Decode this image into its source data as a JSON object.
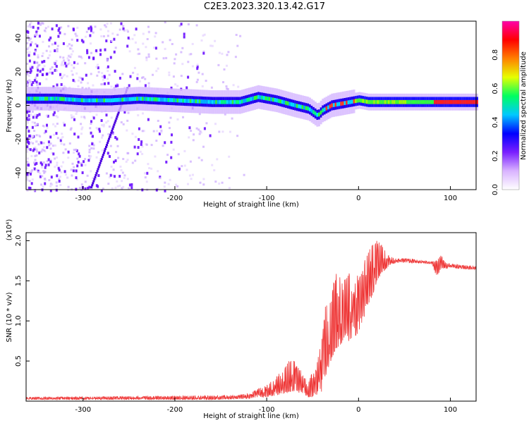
{
  "title": "C2E3.2023.320.13.42.G17",
  "chart_data": [
    {
      "type": "heatmap",
      "xlabel": "Height of straight line (km)",
      "ylabel": "Frequency (Hz)",
      "xlim": [
        -362,
        128
      ],
      "ylim": [
        -50,
        50
      ],
      "xticks": [
        -300,
        -200,
        -100,
        0,
        100
      ],
      "yticks": [
        -40,
        -20,
        0,
        20,
        40
      ],
      "colorbar": {
        "label": "Normalized spectral amplitude",
        "range": [
          0.0,
          1.0
        ],
        "ticks": [
          "0.0",
          "0.2",
          "0.4",
          "0.6",
          "0.8"
        ],
        "colormap": [
          "#ffffff",
          "#d9b3ff",
          "#7a1fff",
          "#0000ff",
          "#00c8ff",
          "#00ff60",
          "#e6ff00",
          "#ff8000",
          "#ff0000",
          "#ff00aa"
        ]
      },
      "ridge": {
        "x": [
          -362,
          -330,
          -300,
          -270,
          -240,
          -200,
          -160,
          -130,
          -110,
          -90,
          -70,
          -55,
          -45,
          -40,
          -30,
          -20,
          -10,
          0,
          10,
          30,
          60,
          90,
          128
        ],
        "y": [
          4,
          4,
          3,
          3,
          4,
          3,
          2,
          2,
          5,
          3,
          0,
          -2,
          -6,
          -3,
          0,
          1,
          2,
          3,
          2,
          2,
          2,
          2,
          2
        ]
      },
      "grid": false
    },
    {
      "type": "line",
      "xlabel": "Height of straight line (km)",
      "ylabel": "SNR (10 * v/v)",
      "multiplier": "(x10⁴)",
      "xlim": [
        -362,
        128
      ],
      "ylim": [
        0,
        2.1
      ],
      "xticks": [
        -300,
        -200,
        -100,
        0,
        100
      ],
      "yticks": [
        0.5,
        1.0,
        1.5,
        2.0
      ],
      "ytick_labels": [
        "0.5",
        "1.0",
        "1.5",
        "2.0"
      ],
      "color": "#ee3333",
      "envelope": {
        "x": [
          -362,
          -250,
          -150,
          -130,
          -120,
          -110,
          -100,
          -90,
          -80,
          -75,
          -70,
          -65,
          -60,
          -55,
          -50,
          -45,
          -40,
          -35,
          -30,
          -25,
          -20,
          -15,
          -10,
          -5,
          0,
          5,
          10,
          15,
          20,
          25,
          30,
          35,
          40,
          50,
          60,
          70,
          80,
          85,
          90,
          95,
          100,
          110,
          128
        ],
        "upper": [
          0.05,
          0.06,
          0.07,
          0.08,
          0.1,
          0.15,
          0.2,
          0.3,
          0.42,
          0.52,
          0.5,
          0.45,
          0.35,
          0.3,
          0.35,
          0.5,
          0.8,
          1.3,
          1.3,
          1.6,
          1.55,
          1.6,
          1.6,
          1.45,
          1.6,
          1.7,
          1.85,
          1.95,
          2.0,
          1.95,
          1.85,
          1.8,
          1.78,
          1.78,
          1.77,
          1.75,
          1.74,
          1.75,
          1.82,
          1.72,
          1.72,
          1.7,
          1.68
        ],
        "lower": [
          0.02,
          0.02,
          0.02,
          0.03,
          0.03,
          0.05,
          0.05,
          0.07,
          0.1,
          0.12,
          0.12,
          0.1,
          0.1,
          0.05,
          0.05,
          0.08,
          0.12,
          0.35,
          0.5,
          0.65,
          0.7,
          0.75,
          0.75,
          0.8,
          0.85,
          1.0,
          1.2,
          1.3,
          1.5,
          1.6,
          1.65,
          1.7,
          1.72,
          1.73,
          1.72,
          1.72,
          1.71,
          1.55,
          1.65,
          1.65,
          1.67,
          1.65,
          1.64
        ]
      },
      "grid": false
    }
  ]
}
